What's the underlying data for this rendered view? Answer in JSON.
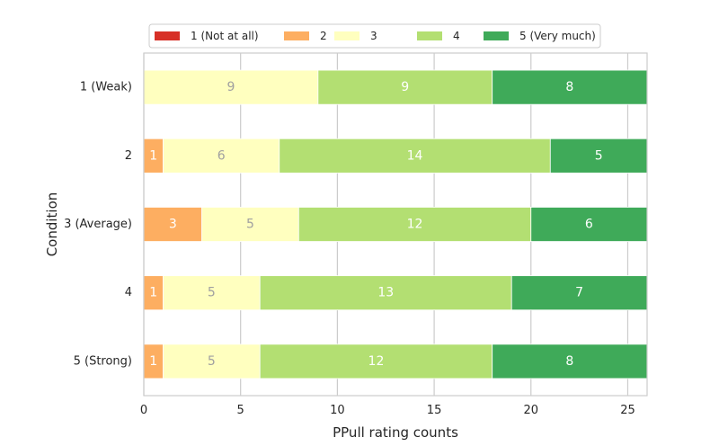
{
  "chart_data": {
    "type": "bar",
    "orientation": "horizontal",
    "stacked": true,
    "title": "",
    "xlabel": "PPull rating counts",
    "ylabel": "Condition",
    "xlim": [
      0,
      26
    ],
    "xticks": [
      0,
      5,
      10,
      15,
      20,
      25
    ],
    "grid": "vertical",
    "legend_position": "top",
    "categories": [
      "1 (Weak)",
      "2",
      "3 (Average)",
      "4",
      "5 (Strong)"
    ],
    "series": [
      {
        "name": "1 (Not at all)",
        "color": "#d73027",
        "label_color": "#ffffff",
        "values": [
          0,
          0,
          0,
          0,
          0
        ]
      },
      {
        "name": "2",
        "color": "#fdae61",
        "label_color": "#ffffff",
        "values": [
          0,
          1,
          3,
          1,
          1
        ]
      },
      {
        "name": "3",
        "color": "#ffffbf",
        "label_color": "#a0a0a0",
        "values": [
          9,
          6,
          5,
          5,
          5
        ]
      },
      {
        "name": "4",
        "color": "#b3df72",
        "label_color": "#ffffff",
        "values": [
          9,
          14,
          12,
          13,
          12
        ]
      },
      {
        "name": "5 (Very much)",
        "color": "#3faa59",
        "label_color": "#ffffff",
        "values": [
          8,
          5,
          6,
          7,
          8
        ]
      }
    ]
  }
}
